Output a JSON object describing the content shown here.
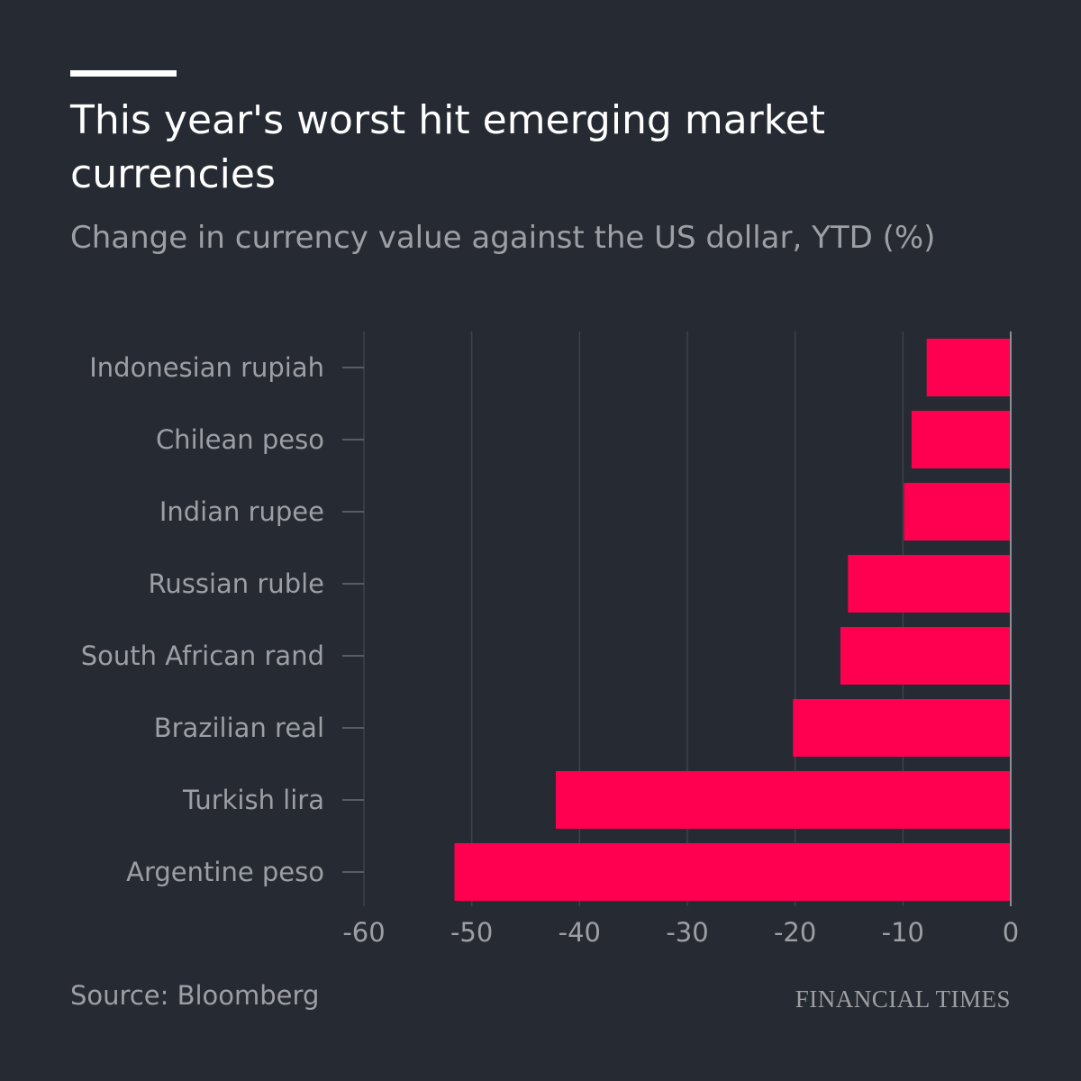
{
  "title": "This year's worst hit emerging market currencies",
  "subtitle": "Change in currency value against the US dollar, YTD (%)",
  "source": "Source: Bloomberg",
  "logo": "FINANCIAL TIMES",
  "colors": {
    "background": "#262a33",
    "bar": "#ff0050",
    "text": "#9e9fa4",
    "grid": "#3d424b"
  },
  "chart_data": {
    "type": "bar",
    "orientation": "horizontal",
    "categories": [
      "Indonesian rupiah",
      "Chilean peso",
      "Indian rupee",
      "Russian ruble",
      "South African rand",
      "Brazilian real",
      "Turkish lira",
      "Argentine peso"
    ],
    "values": [
      -7.8,
      -9.2,
      -9.9,
      -15.1,
      -15.8,
      -20.2,
      -42.2,
      -51.6
    ],
    "xlim": [
      -60,
      0
    ],
    "xticks": [
      "-60",
      "-50",
      "-40",
      "-30",
      "-20",
      "-10",
      "0"
    ],
    "grid": true,
    "xlabel": "",
    "ylabel": ""
  }
}
